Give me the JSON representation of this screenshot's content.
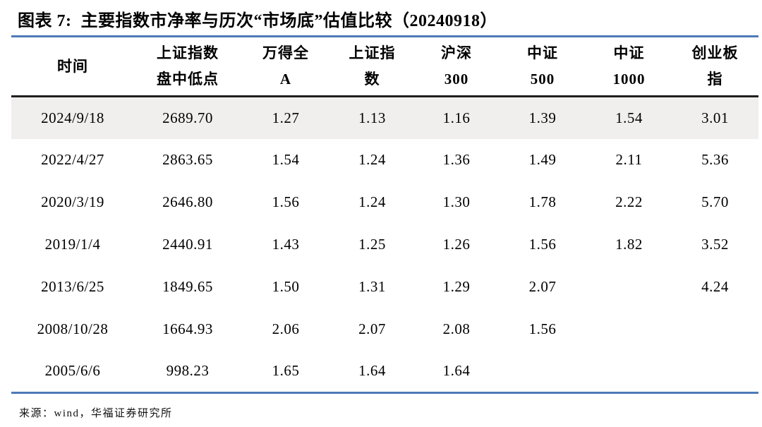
{
  "colors": {
    "accent_blue": "#4f79b8",
    "rule_black": "#1f1f1f",
    "row_highlight": "#f1efee",
    "text_color": "#000000"
  },
  "title": "图表 7:  主要指数市净率与历次“市场底”估值比较（20240918）",
  "source": "来源：wind，华福证券研究所",
  "chart_data": {
    "type": "table",
    "title": "主要指数市净率与历次“市场底”估值比较（20240918）",
    "columns": [
      {
        "line1": "时间",
        "line2": ""
      },
      {
        "line1": "上证指数",
        "line2": "盘中低点"
      },
      {
        "line1": "万得全",
        "line2": "A"
      },
      {
        "line1": "上证指",
        "line2": "数"
      },
      {
        "line1": "沪深",
        "line2": "300"
      },
      {
        "line1": "中证",
        "line2": "500"
      },
      {
        "line1": "中证",
        "line2": "1000"
      },
      {
        "line1": "创业板",
        "line2": "指"
      }
    ],
    "rows": [
      {
        "highlighted": true,
        "cells": [
          "2024/9/18",
          "2689.70",
          "1.27",
          "1.13",
          "1.16",
          "1.39",
          "1.54",
          "3.01"
        ]
      },
      {
        "highlighted": false,
        "cells": [
          "2022/4/27",
          "2863.65",
          "1.54",
          "1.24",
          "1.36",
          "1.49",
          "2.11",
          "5.36"
        ]
      },
      {
        "highlighted": false,
        "cells": [
          "2020/3/19",
          "2646.80",
          "1.56",
          "1.24",
          "1.30",
          "1.78",
          "2.22",
          "5.70"
        ]
      },
      {
        "highlighted": false,
        "cells": [
          "2019/1/4",
          "2440.91",
          "1.43",
          "1.25",
          "1.26",
          "1.56",
          "1.82",
          "3.52"
        ]
      },
      {
        "highlighted": false,
        "cells": [
          "2013/6/25",
          "1849.65",
          "1.50",
          "1.31",
          "1.29",
          "2.07",
          "",
          "4.24"
        ]
      },
      {
        "highlighted": false,
        "cells": [
          "2008/10/28",
          "1664.93",
          "2.06",
          "2.07",
          "2.08",
          "1.56",
          "",
          ""
        ]
      },
      {
        "highlighted": false,
        "cells": [
          "2005/6/6",
          "998.23",
          "1.65",
          "1.64",
          "1.64",
          "",
          "",
          ""
        ]
      }
    ]
  }
}
